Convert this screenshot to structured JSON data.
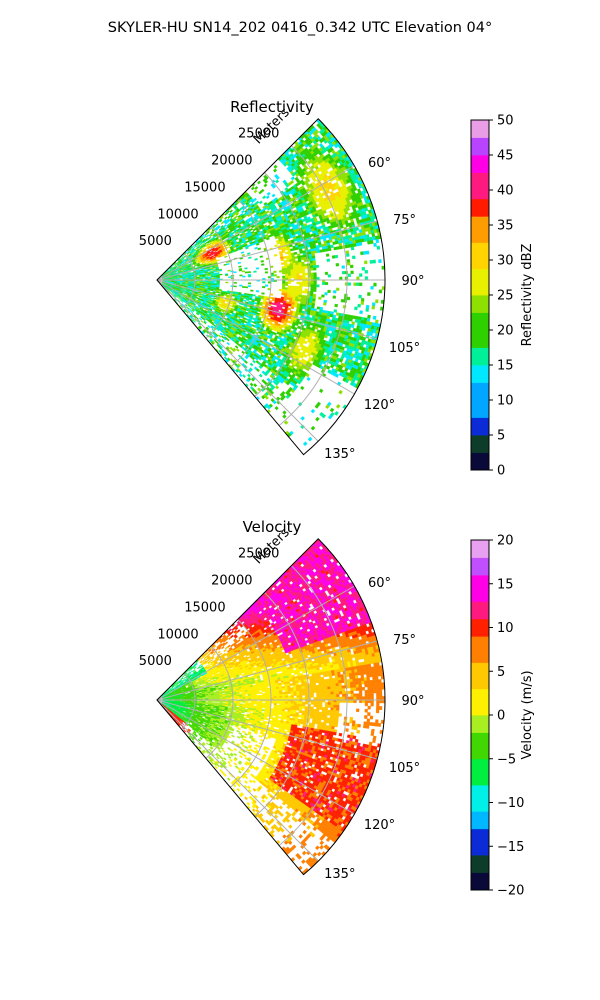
{
  "figure": {
    "suptitle": "SKYLER-HU  SN14_202  0416_0.342 UTC Elevation 04°"
  },
  "chart_data": [
    {
      "type": "heatmap",
      "title": "Reflectivity",
      "projection": "polar-sector",
      "range_label": "Meters",
      "range_ticks": [
        5000,
        10000,
        15000,
        20000,
        25000
      ],
      "range_max": 30000,
      "azimuth_range_deg": [
        45,
        140
      ],
      "azimuth_ticks": [
        "60°",
        "75°",
        "90°",
        "105°",
        "120°",
        "135°"
      ],
      "grid": true,
      "colorbar": {
        "label": "Reflectivity dBZ",
        "min": 0,
        "max": 50,
        "ticks": [
          "0",
          "5",
          "10",
          "15",
          "20",
          "25",
          "30",
          "35",
          "40",
          "45",
          "50"
        ],
        "stops": [
          {
            "v": 0,
            "c": "#0a0a3a"
          },
          {
            "v": 3,
            "c": "#0d3d2a"
          },
          {
            "v": 5,
            "c": "#0b2bd6"
          },
          {
            "v": 8,
            "c": "#00a6ff"
          },
          {
            "v": 12,
            "c": "#00e8ff"
          },
          {
            "v": 15,
            "c": "#00f09a"
          },
          {
            "v": 18,
            "c": "#2fd000"
          },
          {
            "v": 22,
            "c": "#8ee000"
          },
          {
            "v": 25,
            "c": "#e8f000"
          },
          {
            "v": 29,
            "c": "#ffd400"
          },
          {
            "v": 32,
            "c": "#ff9d00"
          },
          {
            "v": 36,
            "c": "#ff1a00"
          },
          {
            "v": 39,
            "c": "#ff1a80"
          },
          {
            "v": 42,
            "c": "#ff00e6"
          },
          {
            "v": 45,
            "c": "#b844ff"
          },
          {
            "v": 48,
            "c": "#e89de6"
          },
          {
            "v": 50,
            "c": "#fbe0f6"
          }
        ]
      },
      "field_description": "scattered echoes 15-30 dBZ with cores near 40 dBZ"
    },
    {
      "type": "heatmap",
      "title": "Velocity",
      "projection": "polar-sector",
      "range_label": "Meters",
      "range_ticks": [
        5000,
        10000,
        15000,
        20000,
        25000
      ],
      "range_max": 30000,
      "azimuth_range_deg": [
        45,
        140
      ],
      "azimuth_ticks": [
        "60°",
        "75°",
        "90°",
        "105°",
        "120°",
        "135°"
      ],
      "grid": true,
      "colorbar": {
        "label": "Velocity (m/s)",
        "min": -20,
        "max": 20,
        "ticks": [
          "−20",
          "−15",
          "−10",
          "−5",
          "0",
          "5",
          "10",
          "15",
          "20"
        ],
        "stops": [
          {
            "v": -20,
            "c": "#0a0a3a"
          },
          {
            "v": -18,
            "c": "#0d3d2a"
          },
          {
            "v": -16,
            "c": "#0b2bd6"
          },
          {
            "v": -13,
            "c": "#00b8ff"
          },
          {
            "v": -11,
            "c": "#00f0e8"
          },
          {
            "v": -8,
            "c": "#00ee40"
          },
          {
            "v": -5,
            "c": "#40d800"
          },
          {
            "v": -2,
            "c": "#a8ee20"
          },
          {
            "v": 0,
            "c": "#fff000"
          },
          {
            "v": 3,
            "c": "#ffc800"
          },
          {
            "v": 6,
            "c": "#ff8000"
          },
          {
            "v": 9,
            "c": "#ff2000"
          },
          {
            "v": 11,
            "c": "#ff1a80"
          },
          {
            "v": 13,
            "c": "#ff00e6"
          },
          {
            "v": 16,
            "c": "#c050ff"
          },
          {
            "v": 18,
            "c": "#e8a0f0"
          },
          {
            "v": 20,
            "c": "#fbe0f6"
          }
        ]
      },
      "field_description": "inbound (green) near radar, yellow near-zero band, outbound red/magenta to the north-east"
    }
  ]
}
